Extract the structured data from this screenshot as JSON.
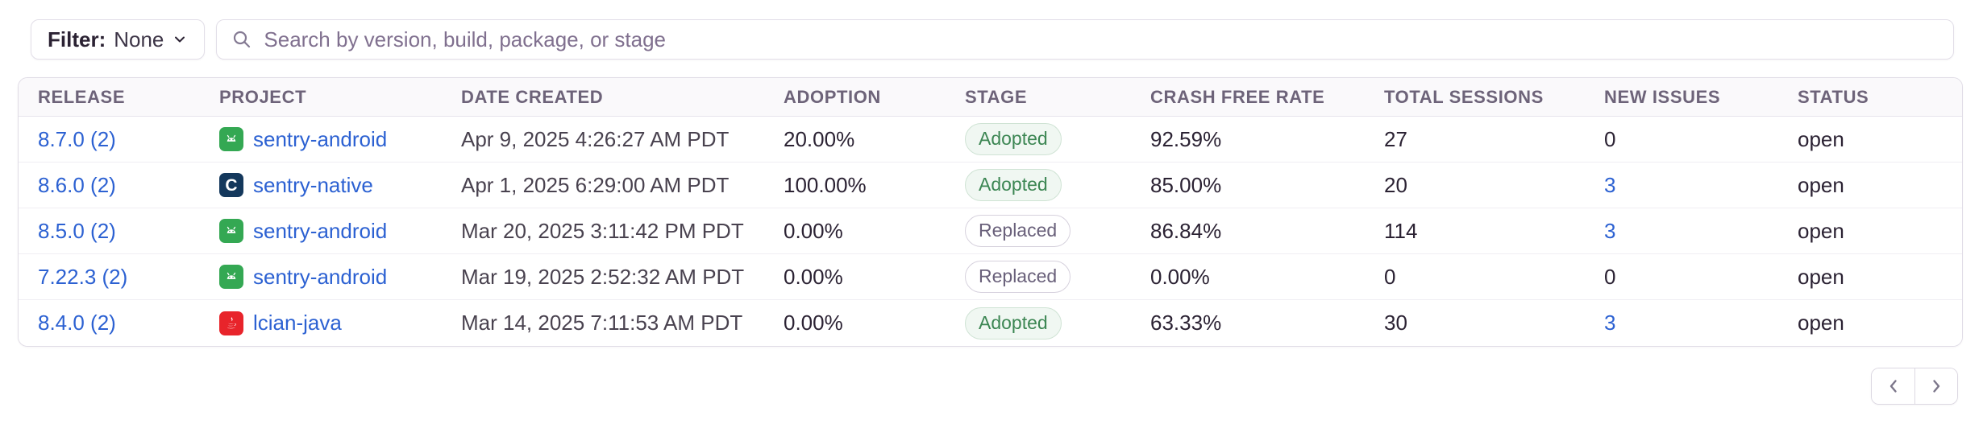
{
  "toolbar": {
    "filter_label": "Filter:",
    "filter_value": "None",
    "search_placeholder": "Search by version, build, package, or stage"
  },
  "table": {
    "columns": [
      "RELEASE",
      "PROJECT",
      "DATE CREATED",
      "ADOPTION",
      "STAGE",
      "CRASH FREE RATE",
      "TOTAL SESSIONS",
      "NEW ISSUES",
      "STATUS"
    ],
    "rows": [
      {
        "release": "8.7.0 (2)",
        "project": "sentry-android",
        "platform": "android",
        "date": "Apr 9, 2025 4:26:27 AM PDT",
        "adoption": "20.00%",
        "stage": "Adopted",
        "crash_free_rate": "92.59%",
        "total_sessions": "27",
        "new_issues": "0",
        "new_issues_is_link": false,
        "status": "open"
      },
      {
        "release": "8.6.0 (2)",
        "project": "sentry-native",
        "platform": "native-c",
        "date": "Apr 1, 2025 6:29:00 AM PDT",
        "adoption": "100.00%",
        "stage": "Adopted",
        "crash_free_rate": "85.00%",
        "total_sessions": "20",
        "new_issues": "3",
        "new_issues_is_link": true,
        "status": "open"
      },
      {
        "release": "8.5.0 (2)",
        "project": "sentry-android",
        "platform": "android",
        "date": "Mar 20, 2025 3:11:42 PM PDT",
        "adoption": "0.00%",
        "stage": "Replaced",
        "crash_free_rate": "86.84%",
        "total_sessions": "114",
        "new_issues": "3",
        "new_issues_is_link": true,
        "status": "open"
      },
      {
        "release": "7.22.3 (2)",
        "project": "sentry-android",
        "platform": "android",
        "date": "Mar 19, 2025 2:52:32 AM PDT",
        "adoption": "0.00%",
        "stage": "Replaced",
        "crash_free_rate": "0.00%",
        "total_sessions": "0",
        "new_issues": "0",
        "new_issues_is_link": false,
        "status": "open"
      },
      {
        "release": "8.4.0 (2)",
        "project": "lcian-java",
        "platform": "java",
        "date": "Mar 14, 2025 7:11:53 AM PDT",
        "adoption": "0.00%",
        "stage": "Adopted",
        "crash_free_rate": "63.33%",
        "total_sessions": "30",
        "new_issues": "3",
        "new_issues_is_link": true,
        "status": "open"
      }
    ]
  },
  "platform_colors": {
    "android": "#34a853",
    "native-c": "#14385c",
    "java": "#e8242b"
  },
  "colors": {
    "link_blue": "#2c61d2",
    "adopted_green": "#3c8653",
    "header_text": "#6d6379"
  },
  "pagination": {
    "prev": "previous-page",
    "next": "next-page"
  }
}
